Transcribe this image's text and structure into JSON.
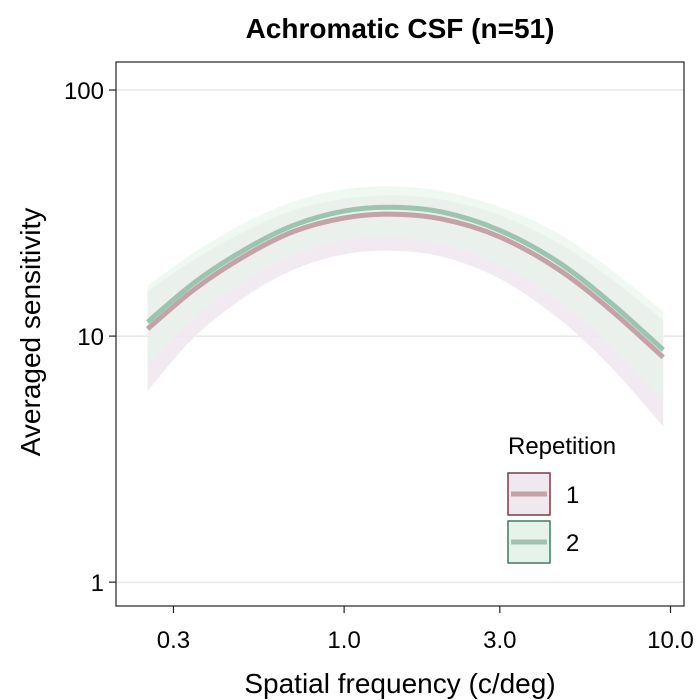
{
  "chart_data": {
    "type": "line",
    "title": "Achromatic CSF (n=51)",
    "xlabel": "Spatial frequency (c/deg)",
    "ylabel": "Averaged sensitivity",
    "x_scale": "log",
    "y_scale": "log",
    "xlim": [
      0.2,
      11
    ],
    "ylim": [
      0.8,
      130
    ],
    "x_ticks": [
      0.3,
      1.0,
      3.0,
      10.0
    ],
    "x_tick_labels": [
      "0.3",
      "1.0",
      "3.0",
      "10.0"
    ],
    "y_ticks": [
      1,
      10,
      100
    ],
    "y_tick_labels": [
      "1",
      "10",
      "100"
    ],
    "grid": "horizontal major",
    "legend": {
      "title": "Repetition",
      "placement": "bottom-right"
    },
    "x": [
      0.25,
      0.35,
      0.5,
      0.7,
      1.0,
      1.4,
      2.0,
      3.0,
      4.5,
      6.5,
      9.5
    ],
    "series": [
      {
        "name": "1",
        "color": "#c4a2a8",
        "band_color": "#efe8ee",
        "border_color": "#7a3b48",
        "values": [
          10.7,
          15.6,
          21.3,
          26.6,
          30.2,
          31.3,
          29.9,
          25.3,
          18.8,
          12.9,
          8.2
        ],
        "lower": [
          6.0,
          10.0,
          14.5,
          18.6,
          21.5,
          22.2,
          21.0,
          17.1,
          11.9,
          7.6,
          4.3
        ],
        "upper": [
          15.2,
          20.6,
          26.8,
          32.5,
          36.1,
          37.3,
          35.8,
          31.0,
          24.0,
          17.3,
          11.6
        ]
      },
      {
        "name": "2",
        "color": "#9dc4b0",
        "band_color": "#e6f3ea",
        "border_color": "#3d7d62",
        "values": [
          11.4,
          16.6,
          22.6,
          28.2,
          32.2,
          33.4,
          31.9,
          26.9,
          20.1,
          13.8,
          8.8
        ],
        "lower": [
          7.6,
          12.0,
          17.0,
          21.5,
          24.6,
          25.2,
          23.8,
          19.6,
          14.1,
          9.3,
          5.4
        ],
        "upper": [
          16.0,
          22.0,
          29.0,
          35.2,
          39.5,
          40.6,
          38.8,
          33.5,
          26.3,
          18.8,
          12.6
        ]
      }
    ]
  }
}
